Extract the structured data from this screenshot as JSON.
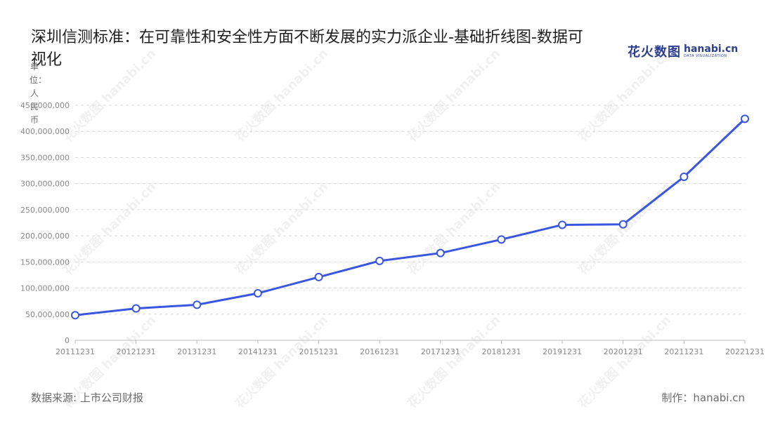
{
  "header": {
    "title": "深圳信测标准：在可靠性和安全性方面不断发展的实力派企业-基础折线图-数据可视化",
    "logo_cn": "花火数图",
    "logo_en": "hanabi.cn",
    "logo_tagline": "DATA VISUALIZATION",
    "watermark": "花火数图 hanabi.cn"
  },
  "chart_data": {
    "type": "line",
    "ylabel": "单位：人民币",
    "ylim": [
      0,
      450000000
    ],
    "yticks": [
      "0",
      "50,000,000",
      "100,000,000",
      "150,000,000",
      "200,000,000",
      "250,000,000",
      "300,000,000",
      "350,000,000",
      "400,000,000",
      "450,000,000"
    ],
    "categories": [
      "20111231",
      "20121231",
      "20131231",
      "20141231",
      "20151231",
      "20161231",
      "20171231",
      "20181231",
      "20191231",
      "20201231",
      "20211231",
      "20221231"
    ],
    "series": [
      {
        "values": [
          48000000,
          61000000,
          68000000,
          90000000,
          121000000,
          152000000,
          167000000,
          193000000,
          221000000,
          222000000,
          313000000,
          424000000
        ],
        "color": "#3a56e0"
      }
    ],
    "grid": true,
    "legend": "none"
  },
  "footer": {
    "source": "数据来源: 上市公司财报",
    "credit": "制作：hanabi.cn"
  }
}
